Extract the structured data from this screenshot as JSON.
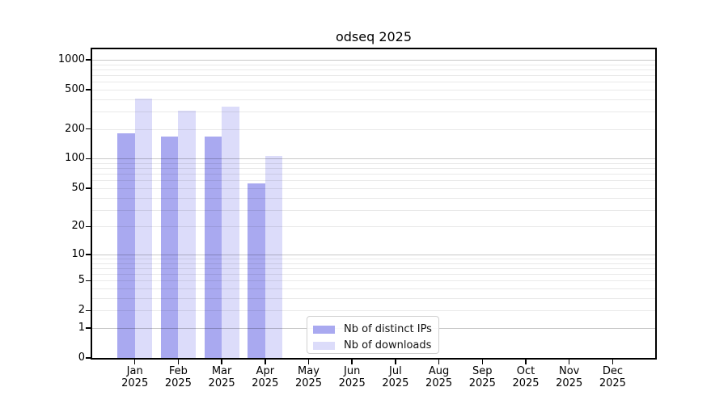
{
  "title": "odseq 2025",
  "chart_data": {
    "type": "bar",
    "title": "odseq 2025",
    "y_scale": "log10(1+x)",
    "grid": "horizontal-major-and-minor",
    "legend_position": "bottom-center",
    "months": [
      "Jan",
      "Feb",
      "Mar",
      "Apr",
      "May",
      "Jun",
      "Jul",
      "Aug",
      "Sep",
      "Oct",
      "Nov",
      "Dec"
    ],
    "year": "2025",
    "categories": [
      "Jan 2025",
      "Feb 2025",
      "Mar 2025",
      "Apr 2025",
      "May 2025",
      "Jun 2025",
      "Jul 2025",
      "Aug 2025",
      "Sep 2025",
      "Oct 2025",
      "Nov 2025",
      "Dec 2025"
    ],
    "series": [
      {
        "name": "Nb of distinct IPs",
        "color": "#a9a9f0",
        "values": [
          180,
          169,
          169,
          56,
          0,
          0,
          0,
          0,
          0,
          0,
          0,
          0
        ]
      },
      {
        "name": "Nb of downloads",
        "color": "#dcdcfa",
        "values": [
          404,
          307,
          334,
          107,
          0,
          0,
          0,
          0,
          0,
          0,
          0,
          0
        ]
      }
    ],
    "y_ticks": [
      0,
      1,
      2,
      5,
      10,
      20,
      50,
      100,
      200,
      500,
      1000
    ],
    "ylim": [
      0,
      1300
    ]
  },
  "colors": {
    "axis": "#000000",
    "grid_major": "#c9c9c9",
    "grid_minor": "#e8e8e8",
    "background": "#ffffff"
  }
}
